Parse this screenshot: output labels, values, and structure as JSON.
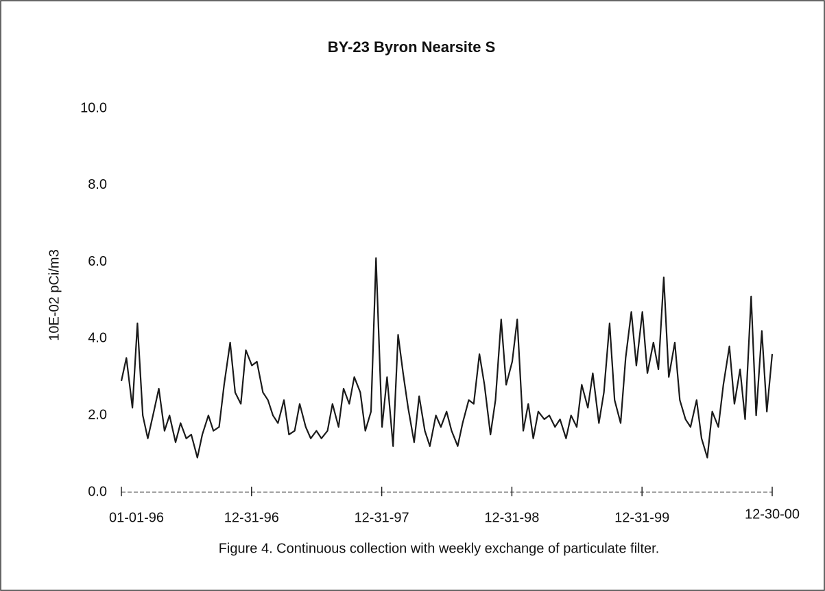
{
  "chart_data": {
    "type": "line",
    "title": "BY-23  Byron Nearsite S",
    "y_label": "10E-02 pCi/m3",
    "caption": "Figure 4.   Continuous collection with weekly exchange of particulate filter.",
    "x": [
      "1996-01-01",
      "1996-01-15",
      "1996-02-01",
      "1996-02-15",
      "1996-03-01",
      "1996-03-15",
      "1996-04-01",
      "1996-04-15",
      "1996-05-01",
      "1996-05-15",
      "1996-06-01",
      "1996-06-15",
      "1996-07-01",
      "1996-07-15",
      "1996-08-01",
      "1996-08-15",
      "1996-09-01",
      "1996-09-15",
      "1996-10-01",
      "1996-10-15",
      "1996-11-01",
      "1996-11-15",
      "1996-12-01",
      "1996-12-15",
      "1997-01-01",
      "1997-01-15",
      "1997-02-01",
      "1997-02-15",
      "1997-03-01",
      "1997-03-15",
      "1997-04-01",
      "1997-04-15",
      "1997-05-01",
      "1997-05-15",
      "1997-06-01",
      "1997-06-15",
      "1997-07-01",
      "1997-07-15",
      "1997-08-01",
      "1997-08-15",
      "1997-09-01",
      "1997-09-15",
      "1997-10-01",
      "1997-10-15",
      "1997-11-01",
      "1997-11-15",
      "1997-12-01",
      "1997-12-15",
      "1998-01-01",
      "1998-01-15",
      "1998-02-01",
      "1998-02-15",
      "1998-03-01",
      "1998-03-15",
      "1998-04-01",
      "1998-04-15",
      "1998-05-01",
      "1998-05-15",
      "1998-06-01",
      "1998-06-15",
      "1998-07-01",
      "1998-07-15",
      "1998-08-01",
      "1998-08-15",
      "1998-09-01",
      "1998-09-15",
      "1998-10-01",
      "1998-10-15",
      "1998-11-01",
      "1998-11-15",
      "1998-12-01",
      "1998-12-15",
      "1999-01-01",
      "1999-01-15",
      "1999-02-01",
      "1999-02-15",
      "1999-03-01",
      "1999-03-15",
      "1999-04-01",
      "1999-04-15",
      "1999-05-01",
      "1999-05-15",
      "1999-06-01",
      "1999-06-15",
      "1999-07-01",
      "1999-07-15",
      "1999-08-01",
      "1999-08-15",
      "1999-09-01",
      "1999-09-15",
      "1999-10-01",
      "1999-10-15",
      "1999-11-01",
      "1999-11-15",
      "1999-12-01",
      "1999-12-15",
      "2000-01-01",
      "2000-01-15",
      "2000-02-01",
      "2000-02-15",
      "2000-03-01",
      "2000-03-15",
      "2000-04-01",
      "2000-04-15",
      "2000-05-01",
      "2000-05-15",
      "2000-06-01",
      "2000-06-15",
      "2000-07-01",
      "2000-07-15",
      "2000-08-01",
      "2000-08-15",
      "2000-09-01",
      "2000-09-15",
      "2000-10-01",
      "2000-10-15",
      "2000-11-01",
      "2000-11-15",
      "2000-12-01",
      "2000-12-15",
      "2000-12-30"
    ],
    "series": [
      {
        "name": "BY-23",
        "color": "#1a1a1a",
        "values": [
          2.9,
          3.5,
          2.2,
          4.4,
          2.0,
          1.4,
          2.1,
          2.7,
          1.6,
          2.0,
          1.3,
          1.8,
          1.4,
          1.5,
          0.9,
          1.5,
          2.0,
          1.6,
          1.7,
          2.8,
          3.9,
          2.6,
          2.3,
          3.7,
          3.3,
          3.4,
          2.6,
          2.4,
          2.0,
          1.8,
          2.4,
          1.5,
          1.6,
          2.3,
          1.7,
          1.4,
          1.6,
          1.4,
          1.6,
          2.3,
          1.7,
          2.7,
          2.3,
          3.0,
          2.6,
          1.6,
          2.1,
          6.1,
          1.7,
          3.0,
          1.2,
          4.1,
          3.1,
          2.2,
          1.3,
          2.5,
          1.6,
          1.2,
          2.0,
          1.7,
          2.1,
          1.6,
          1.2,
          1.8,
          2.4,
          2.3,
          3.6,
          2.8,
          1.5,
          2.4,
          4.5,
          2.8,
          3.4,
          4.5,
          1.6,
          2.3,
          1.4,
          2.1,
          1.9,
          2.0,
          1.7,
          1.9,
          1.4,
          2.0,
          1.7,
          2.8,
          2.2,
          3.1,
          1.8,
          2.6,
          4.4,
          2.4,
          1.8,
          3.5,
          4.7,
          3.3,
          4.7,
          3.1,
          3.9,
          3.2,
          5.6,
          3.0,
          3.9,
          2.4,
          1.9,
          1.7,
          2.4,
          1.4,
          0.9,
          2.1,
          1.7,
          2.8,
          3.8,
          2.3,
          3.2,
          1.9,
          5.1,
          2.0,
          4.2,
          2.1,
          3.6
        ]
      }
    ],
    "xlim": [
      "1996-01-01",
      "2000-12-30"
    ],
    "xticks": [
      {
        "value": "1996-01-01",
        "label": "01-01-96"
      },
      {
        "value": "1996-12-31",
        "label": "12-31-96"
      },
      {
        "value": "1997-12-31",
        "label": "12-31-97"
      },
      {
        "value": "1998-12-31",
        "label": "12-31-98"
      },
      {
        "value": "1999-12-31",
        "label": "12-31-99"
      },
      {
        "value": "2000-12-30",
        "label": "12-30-00"
      }
    ],
    "ylim": [
      0,
      10
    ],
    "yticks": [
      {
        "value": 0,
        "label": "0.0"
      },
      {
        "value": 2,
        "label": "2.0"
      },
      {
        "value": 4,
        "label": "4.0"
      },
      {
        "value": 6,
        "label": "6.0"
      },
      {
        "value": 8,
        "label": "8.0"
      },
      {
        "value": 10,
        "label": "10.0"
      }
    ],
    "grid": false
  }
}
